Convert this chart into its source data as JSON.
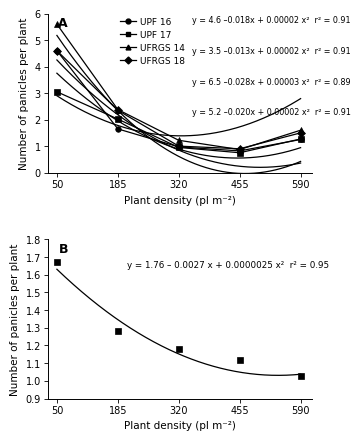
{
  "x_ticks": [
    50,
    185,
    320,
    455,
    590
  ],
  "panel_A": {
    "label": "A",
    "series": [
      {
        "name": "UPF 16",
        "marker": "o",
        "y_data": [
          4.6,
          1.65,
          0.97,
          0.82,
          1.25
        ],
        "a": 4.6,
        "b": -0.018,
        "c": 2e-05
      },
      {
        "name": "UPF 17",
        "marker": "s",
        "y_data": [
          3.05,
          2.02,
          0.95,
          0.75,
          1.27
        ],
        "a": 3.5,
        "b": -0.013,
        "c": 2e-05
      },
      {
        "name": "UFRGS 14",
        "marker": "^",
        "y_data": [
          5.6,
          2.38,
          1.22,
          0.87,
          1.6
        ],
        "a": 6.5,
        "b": -0.028,
        "c": 3e-05
      },
      {
        "name": "UFRGS 18",
        "marker": "D",
        "y_data": [
          4.6,
          2.35,
          1.0,
          0.9,
          1.5
        ],
        "a": 5.2,
        "b": -0.02,
        "c": 2e-05
      }
    ],
    "eq_texts": [
      "y = 4.6 –0.018x + 0.00002 x²  r² = 0.91",
      "y = 3.5 –0.013x + 0.00002 x²  r² = 0.91",
      "y = 6.5 –0.028x + 0.00003 x²  r² = 0.89",
      "y = 5.2 –0.020x + 0.00002 x²  r² = 0.91"
    ],
    "ylim": [
      0,
      6
    ],
    "yticks": [
      0,
      1,
      2,
      3,
      4,
      5,
      6
    ],
    "ylabel": "Number of panicles per plant",
    "xlabel": "Plant density (pl m⁻²)"
  },
  "panel_B": {
    "label": "B",
    "y_data": [
      1.67,
      1.28,
      1.18,
      1.12,
      1.03
    ],
    "eq": "y = 1.76 – 0.0027 x + 0.0000025 x²  r² = 0.95",
    "a": 1.76,
    "b": -0.0027,
    "c": 2.5e-06,
    "ylim": [
      0.9,
      1.8
    ],
    "yticks": [
      0.9,
      1.0,
      1.1,
      1.2,
      1.3,
      1.4,
      1.5,
      1.6,
      1.7,
      1.8
    ],
    "ylabel": "Number of panicles per plant",
    "xlabel": "Plant density (pl m⁻²)",
    "marker": "s"
  },
  "line_color": "black",
  "marker_color": "black",
  "marker_size": 4,
  "font_size": 7,
  "label_font_size": 7.5,
  "eq_font_size": 5.8,
  "legend_font_size": 6.5
}
